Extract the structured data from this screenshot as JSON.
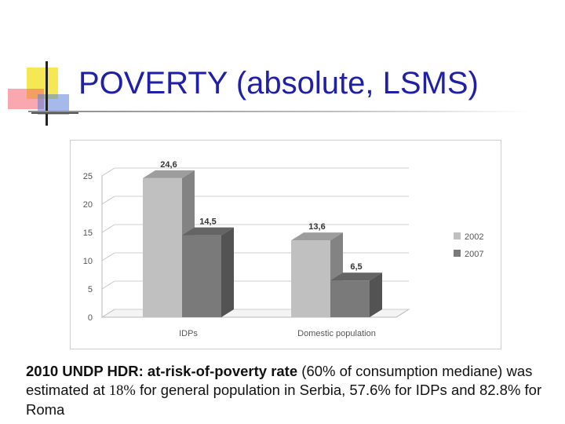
{
  "slide": {
    "title": "POVERTY (absolute, LSMS)"
  },
  "chart_data": {
    "type": "bar",
    "title": "",
    "xlabel": "",
    "ylabel": "",
    "categories": [
      "IDPs",
      "Domestic population"
    ],
    "series": [
      {
        "name": "2002",
        "values": [
          24.6,
          13.6
        ],
        "labels": [
          "24,6",
          "13,6"
        ],
        "color": "#c0c0c0"
      },
      {
        "name": "2007",
        "values": [
          14.5,
          6.5
        ],
        "labels": [
          "14,5",
          "6,5"
        ],
        "color": "#7a7a7a"
      }
    ],
    "ylim": [
      0,
      25
    ],
    "yticks": [
      "0",
      "5",
      "10",
      "15",
      "20",
      "25"
    ],
    "legend_position": "right",
    "grid": true,
    "style": "3d"
  },
  "caption": {
    "bold": "2010 UNDP HDR",
    "colon": ":",
    "lead": "at-risk-of-poverty rate",
    "rest1": "(60% of consumption mediane) was estimated at",
    "pct1": "18%",
    "rest2": "for general population in Serbia, 57.6% for IDPs and 82.8% for Roma"
  }
}
